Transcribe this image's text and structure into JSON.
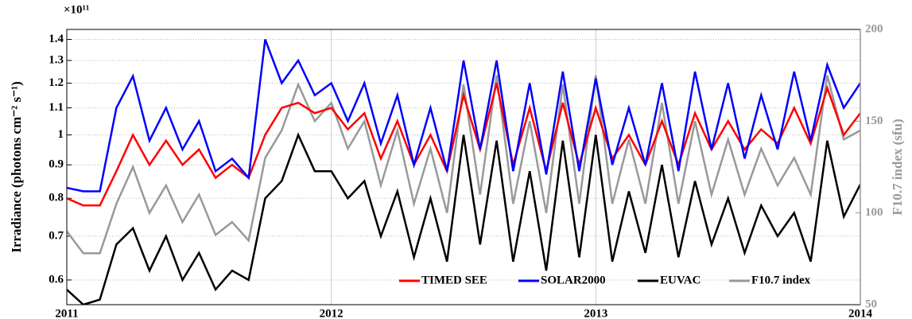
{
  "chart_data": {
    "type": "line",
    "ylabel": "Irradiance (photons cm⁻² s⁻¹)",
    "y_multiplier": "×10¹¹",
    "y2label": "F10.7 index (sfu)",
    "x": [
      2011,
      2011.0625,
      2011.125,
      2011.1875,
      2011.25,
      2011.3125,
      2011.375,
      2011.4375,
      2011.5,
      2011.5625,
      2011.625,
      2011.6875,
      2011.75,
      2011.8125,
      2011.875,
      2011.9375,
      2012,
      2012.0625,
      2012.125,
      2012.1875,
      2012.25,
      2012.3125,
      2012.375,
      2012.4375,
      2012.5,
      2012.5625,
      2012.625,
      2012.6875,
      2012.75,
      2012.8125,
      2012.875,
      2012.9375,
      2013,
      2013.0625,
      2013.125,
      2013.1875,
      2013.25,
      2013.3125,
      2013.375,
      2013.4375,
      2013.5,
      2013.5625,
      2013.625,
      2013.6875,
      2013.75,
      2013.8125,
      2013.875,
      2013.9375,
      2014
    ],
    "xlim": [
      2011,
      2014
    ],
    "xticks": [
      2011,
      2012,
      2013,
      2014
    ],
    "ylim": [
      0.55,
      1.45
    ],
    "yticks": [
      0.6,
      0.7,
      0.8,
      0.9,
      1,
      1.1,
      1.2,
      1.3,
      1.4
    ],
    "ylog": true,
    "y2lim": [
      50,
      200
    ],
    "y2ticks": [
      50,
      100,
      150,
      200
    ],
    "grid": true,
    "legend": "lower right",
    "series": [
      {
        "name": "TIMED SEE",
        "color": "#ff0000",
        "values": [
          0.8,
          0.78,
          0.78,
          0.88,
          1.0,
          0.9,
          0.98,
          0.9,
          0.95,
          0.86,
          0.9,
          0.86,
          1.0,
          1.1,
          1.12,
          1.08,
          1.1,
          1.02,
          1.08,
          0.92,
          1.05,
          0.9,
          1.0,
          0.88,
          1.15,
          0.95,
          1.2,
          0.9,
          1.1,
          0.88,
          1.12,
          0.9,
          1.1,
          0.92,
          1.0,
          0.9,
          1.05,
          0.9,
          1.08,
          0.95,
          1.05,
          0.95,
          1.02,
          0.97,
          1.1,
          0.97,
          1.18,
          1.0,
          1.08
        ]
      },
      {
        "name": "SOLAR2000",
        "color": "#0000ff",
        "values": [
          0.83,
          0.82,
          0.82,
          1.1,
          1.23,
          0.98,
          1.1,
          0.95,
          1.05,
          0.88,
          0.92,
          0.86,
          1.4,
          1.2,
          1.3,
          1.15,
          1.2,
          1.05,
          1.2,
          0.97,
          1.15,
          0.9,
          1.1,
          0.88,
          1.3,
          0.95,
          1.3,
          0.88,
          1.2,
          0.87,
          1.25,
          0.88,
          1.22,
          0.9,
          1.1,
          0.9,
          1.2,
          0.88,
          1.25,
          0.95,
          1.2,
          0.92,
          1.15,
          0.95,
          1.25,
          0.98,
          1.28,
          1.1,
          1.2
        ]
      },
      {
        "name": "EUVAC",
        "color": "#000000",
        "values": [
          0.58,
          0.55,
          0.56,
          0.68,
          0.72,
          0.62,
          0.7,
          0.6,
          0.66,
          0.58,
          0.62,
          0.6,
          0.8,
          0.85,
          1.0,
          0.88,
          0.88,
          0.8,
          0.85,
          0.7,
          0.82,
          0.65,
          0.8,
          0.64,
          1.0,
          0.68,
          0.98,
          0.64,
          0.88,
          0.62,
          0.98,
          0.65,
          1.0,
          0.64,
          0.82,
          0.66,
          0.9,
          0.65,
          0.85,
          0.68,
          0.8,
          0.66,
          0.78,
          0.7,
          0.76,
          0.64,
          0.98,
          0.75,
          0.84
        ]
      },
      {
        "name": "F10.7 index",
        "color": "#999999",
        "axis": "y2",
        "values": [
          90,
          78,
          78,
          105,
          125,
          100,
          115,
          95,
          110,
          88,
          95,
          85,
          130,
          145,
          170,
          150,
          160,
          135,
          150,
          115,
          145,
          105,
          135,
          100,
          170,
          110,
          175,
          105,
          150,
          100,
          170,
          105,
          175,
          105,
          140,
          105,
          160,
          105,
          150,
          110,
          140,
          110,
          135,
          115,
          130,
          110,
          175,
          140,
          145
        ]
      }
    ]
  }
}
